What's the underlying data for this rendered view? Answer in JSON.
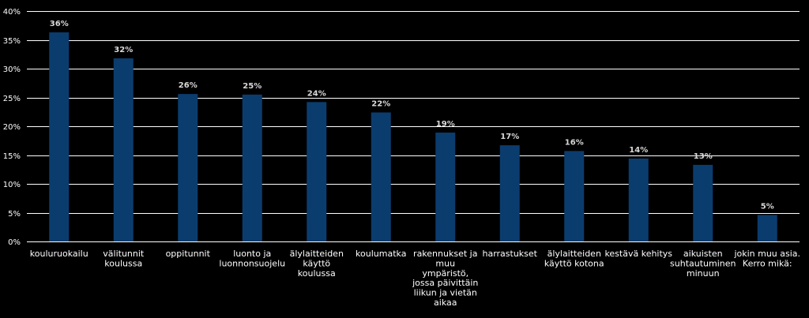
{
  "chart_data": {
    "type": "bar",
    "title": "",
    "xlabel": "",
    "ylabel": "",
    "ylim": [
      0,
      40
    ],
    "yticks": [
      0,
      5,
      10,
      15,
      20,
      25,
      30,
      35,
      40
    ],
    "ytick_format": "percent",
    "grid": true,
    "bar_color": "#0b3c6e",
    "categories": [
      [
        "kouluruokailu"
      ],
      [
        "välitunnit",
        "koulussa"
      ],
      [
        "oppitunnit"
      ],
      [
        "luonto ja",
        "luonnonsuojelu"
      ],
      [
        "älylaitteiden",
        "käyttö",
        "koulussa"
      ],
      [
        "koulumatka"
      ],
      [
        "rakennukset ja",
        "muu",
        "ympäristö,",
        "jossa päivittäin",
        "liikun ja vietän",
        "aikaa"
      ],
      [
        "harrastukset"
      ],
      [
        "älylaitteiden",
        "käyttö kotona"
      ],
      [
        "kestävä kehitys"
      ],
      [
        "aikuisten",
        "suhtautuminen",
        "minuun"
      ],
      [
        "jokin muu asia.",
        "Kerro mikä:"
      ]
    ],
    "values": [
      36,
      32,
      26,
      25,
      24,
      22,
      19,
      17,
      16,
      14,
      13,
      5
    ],
    "data_labels": [
      "36%",
      "32%",
      "26%",
      "25%",
      "24%",
      "22%",
      "19%",
      "17%",
      "16%",
      "14%",
      "13%",
      "5%"
    ],
    "series": [
      {
        "values": [
          36.3,
          31.8,
          25.6,
          25.5,
          24.2,
          22.4,
          18.9,
          16.7,
          15.7,
          14.4,
          13.3,
          4.6
        ]
      }
    ]
  }
}
